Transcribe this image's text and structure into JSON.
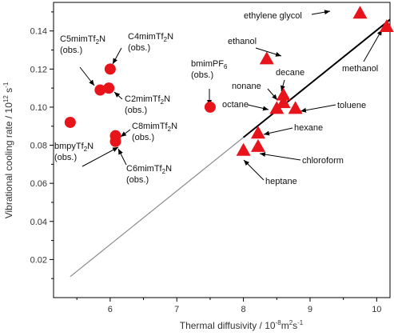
{
  "chart_data": {
    "type": "scatter",
    "xlabel": "Thermal diffusivity / 10",
    "xlabel_sup": "-8",
    "xlabel_unit": "m",
    "xlabel_unit_sup": "2",
    "xlabel_tail": "s",
    "xlabel_tail_sup": "-1",
    "ylabel": "Vibrational cooling rate / 10",
    "ylabel_sup": "12",
    "ylabel_tail": " s",
    "ylabel_tail_sup": "-1",
    "xlim": [
      5.15,
      10.2
    ],
    "ylim": [
      0.0,
      0.155
    ],
    "xticks": [
      6,
      7,
      8,
      9,
      10
    ],
    "yticks": [
      0.02,
      0.04,
      0.06,
      0.08,
      0.1,
      0.12,
      0.14
    ],
    "colors": {
      "marker": "#e8141b",
      "axis": "#000000",
      "fit_thin": "#8c8c8c",
      "fit_thick": "#000000"
    },
    "fit_line": {
      "start": [
        5.4,
        0.011
      ],
      "thick_from_x": 8.0,
      "end": [
        10.2,
        0.146
      ]
    },
    "series": [
      {
        "marker": "circle",
        "points": [
          {
            "x": 6.0,
            "y": 0.12,
            "label": [
              "C4mimTf2N",
              "(obs.)"
            ]
          },
          {
            "x": 5.85,
            "y": 0.109,
            "label": [
              "C5mimTf2N",
              "(obs.)"
            ]
          },
          {
            "x": 5.98,
            "y": 0.11,
            "label": [
              "C2mimTf2N",
              "(obs.)"
            ]
          },
          {
            "x": 7.5,
            "y": 0.1,
            "label": [
              "bmimPF6",
              "(obs.)"
            ]
          },
          {
            "x": 5.4,
            "y": 0.092,
            "label": [
              "bmpyTf2N",
              "(obs.)"
            ]
          },
          {
            "x": 6.08,
            "y": 0.085,
            "label": [
              "C8mimTf2N",
              "(obs.)"
            ]
          },
          {
            "x": 6.08,
            "y": 0.082,
            "label": [
              "C6mimTf2N",
              "(obs.)"
            ]
          }
        ]
      },
      {
        "marker": "triangle",
        "points": [
          {
            "x": 9.75,
            "y": 0.149,
            "label": [
              "ethylene glycol"
            ]
          },
          {
            "x": 10.15,
            "y": 0.142,
            "label": [
              "methanol"
            ]
          },
          {
            "x": 8.35,
            "y": 0.125,
            "label": [
              "ethanol"
            ]
          },
          {
            "x": 8.6,
            "y": 0.106,
            "label": [
              "decane"
            ]
          },
          {
            "x": 8.6,
            "y": 0.102,
            "label": [
              "nonane"
            ]
          },
          {
            "x": 8.5,
            "y": 0.099,
            "label": [
              "octane"
            ]
          },
          {
            "x": 8.78,
            "y": 0.099,
            "label": [
              "toluene"
            ]
          },
          {
            "x": 8.22,
            "y": 0.086,
            "label": [
              "hexane"
            ]
          },
          {
            "x": 8.22,
            "y": 0.079,
            "label": [
              "chloroform"
            ]
          },
          {
            "x": 8.0,
            "y": 0.077,
            "label": [
              "heptane"
            ]
          }
        ]
      }
    ]
  }
}
